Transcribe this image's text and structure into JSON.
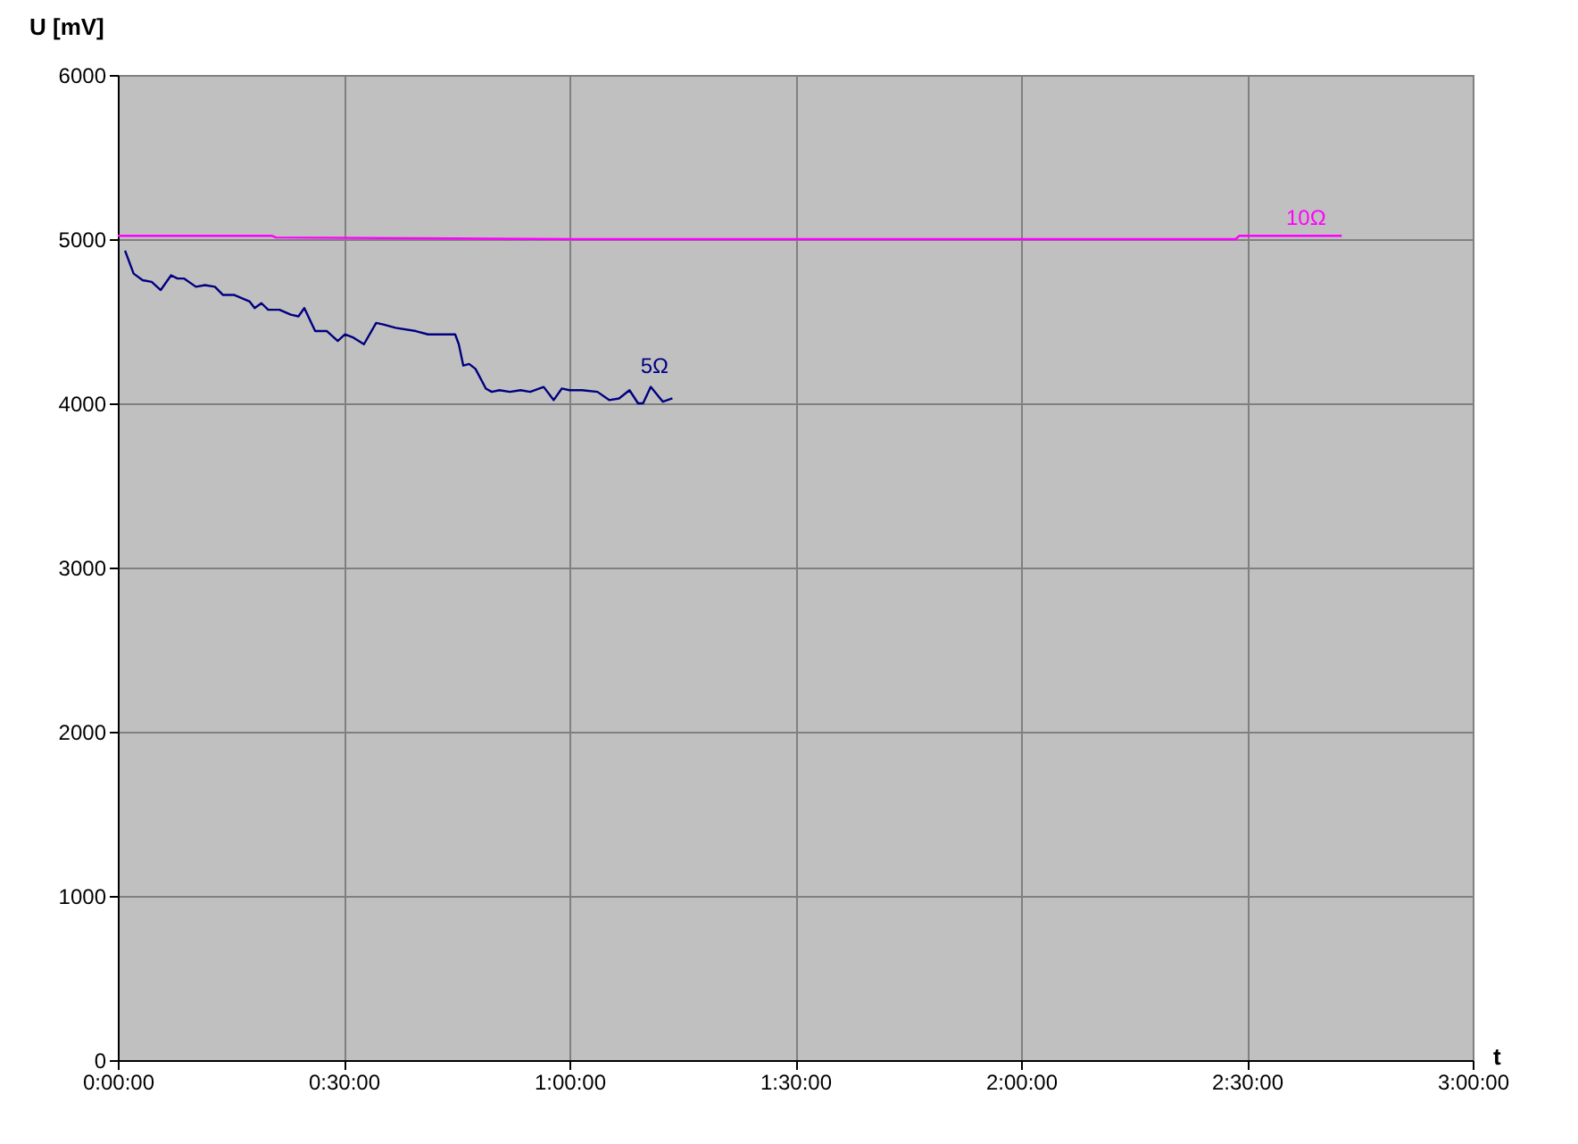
{
  "chart_data": {
    "type": "line",
    "xlabel": "t",
    "ylabel": "U [mV]",
    "xlim": [
      0,
      3
    ],
    "xticks": [
      {
        "value": 0,
        "label": "0:00:00"
      },
      {
        "value": 0.5,
        "label": "0:30:00"
      },
      {
        "value": 1,
        "label": "1:00:00"
      },
      {
        "value": 1.5,
        "label": "1:30:00"
      },
      {
        "value": 2,
        "label": "2:00:00"
      },
      {
        "value": 2.5,
        "label": "2:30:00"
      },
      {
        "value": 3,
        "label": "3:00:00"
      }
    ],
    "ylim": [
      0,
      6000
    ],
    "yticks": [
      {
        "value": 0,
        "label": "0"
      },
      {
        "value": 1000,
        "label": "1000"
      },
      {
        "value": 2000,
        "label": "2000"
      },
      {
        "value": 3000,
        "label": "3000"
      },
      {
        "value": 4000,
        "label": "4000"
      },
      {
        "value": 5000,
        "label": "5000"
      },
      {
        "value": 6000,
        "label": "6000"
      }
    ],
    "grid": true,
    "legend": false,
    "marker": "none",
    "line_style": "solid",
    "series": [
      {
        "name": "5Ω",
        "color": "#000080",
        "x": [
          0.016,
          0.035,
          0.055,
          0.075,
          0.095,
          0.118,
          0.132,
          0.147,
          0.173,
          0.193,
          0.215,
          0.233,
          0.258,
          0.292,
          0.303,
          0.318,
          0.333,
          0.358,
          0.383,
          0.4,
          0.413,
          0.437,
          0.463,
          0.487,
          0.503,
          0.522,
          0.545,
          0.572,
          0.588,
          0.615,
          0.66,
          0.687,
          0.747,
          0.755,
          0.765,
          0.778,
          0.792,
          0.815,
          0.828,
          0.845,
          0.868,
          0.892,
          0.913,
          0.943,
          0.965,
          0.983,
          1.0,
          1.028,
          1.062,
          1.088,
          1.11,
          1.133,
          1.152,
          1.163,
          1.18,
          1.207,
          1.228
        ],
        "values": [
          4930,
          4790,
          4750,
          4740,
          4690,
          4780,
          4760,
          4760,
          4710,
          4720,
          4710,
          4660,
          4660,
          4620,
          4580,
          4610,
          4570,
          4570,
          4540,
          4530,
          4580,
          4440,
          4440,
          4380,
          4420,
          4400,
          4360,
          4490,
          4480,
          4460,
          4440,
          4420,
          4420,
          4360,
          4230,
          4240,
          4210,
          4090,
          4070,
          4080,
          4070,
          4080,
          4070,
          4100,
          4020,
          4090,
          4080,
          4080,
          4070,
          4020,
          4030,
          4080,
          4000,
          4000,
          4100,
          4010,
          4030
        ]
      },
      {
        "name": "10Ω",
        "color": "#ff00ff",
        "x": [
          0,
          0.342,
          0.35,
          1.0,
          1.667,
          2.475,
          2.483,
          2.71
        ],
        "values": [
          5020,
          5020,
          5010,
          5000,
          5000,
          5000,
          5020,
          5020
        ]
      }
    ]
  }
}
